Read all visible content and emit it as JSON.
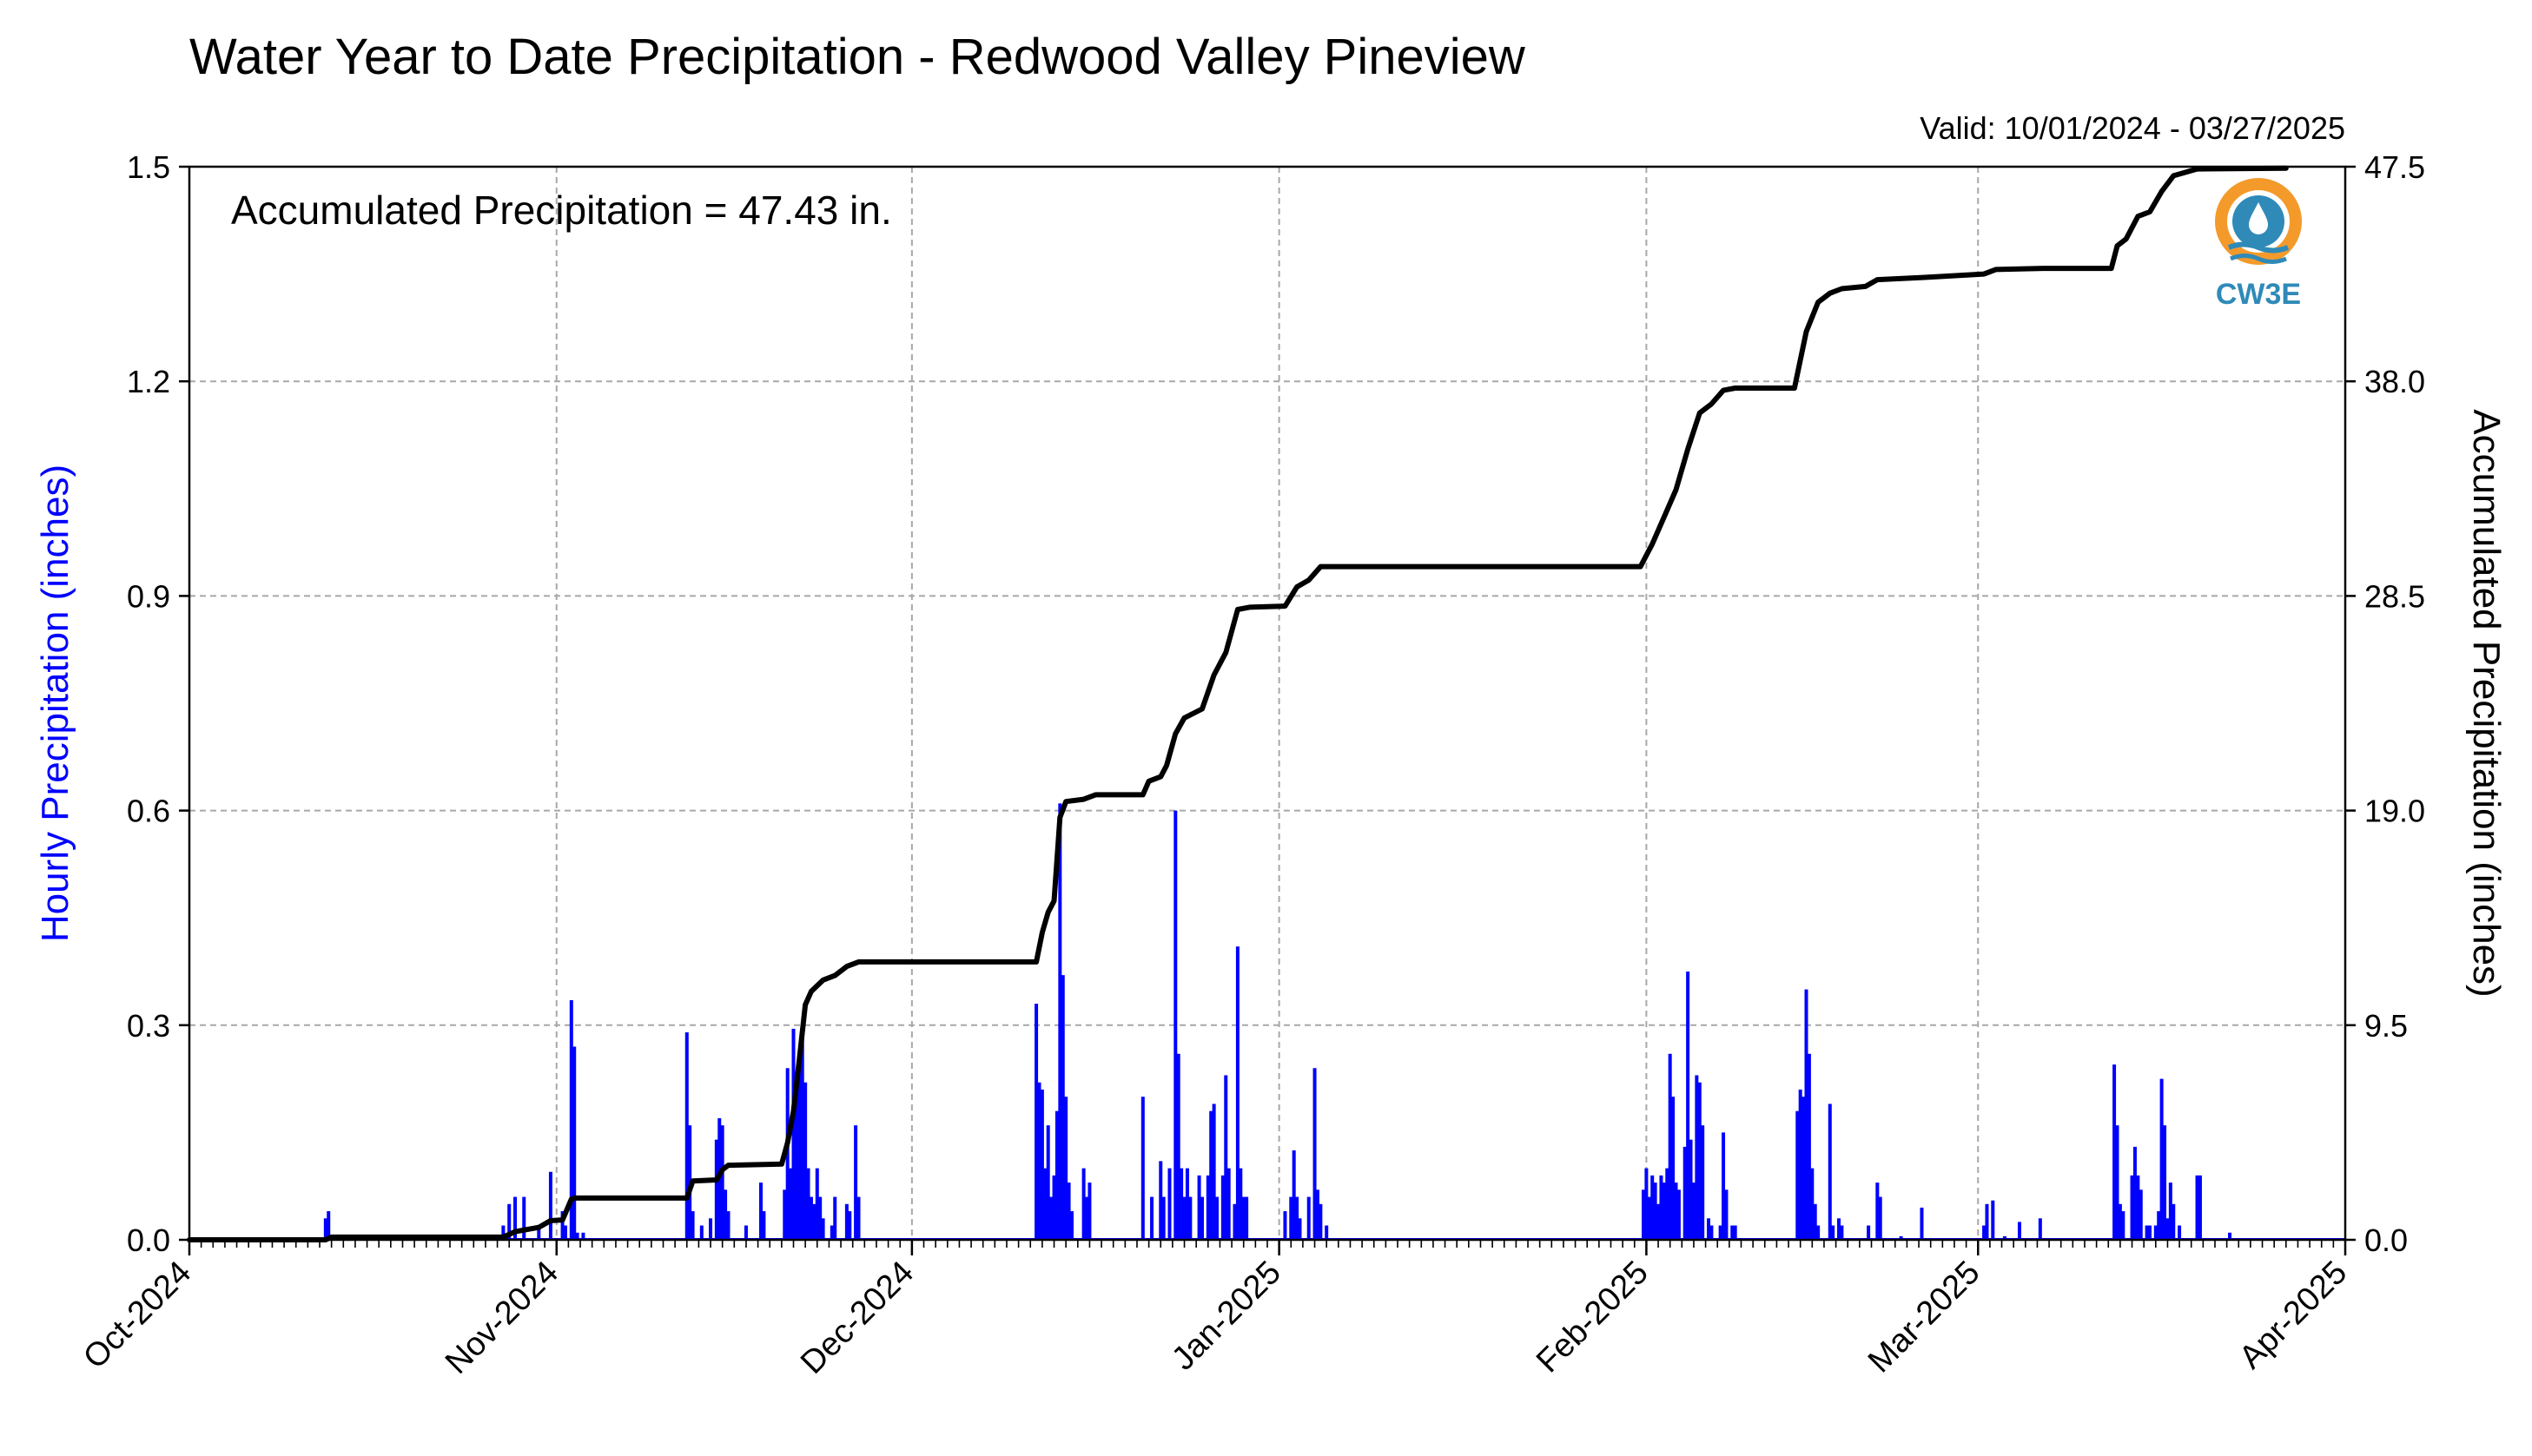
{
  "chart_data": {
    "type": "bar",
    "title": "Water Year to Date Precipitation - Redwood Valley Pineview",
    "subtitle": "Valid: 10/01/2024 - 03/27/2025",
    "annotation": "Accumulated Precipitation = 47.43 in.",
    "logo_text": "CW3E",
    "ylabel_left": "Hourly Precipitation (inches)",
    "ylabel_right": "Accumulated Precipitation (inches)",
    "x_range": [
      "2024-10-01",
      "2025-04-01"
    ],
    "ylim_left": [
      0,
      1.5
    ],
    "ylim_right": [
      0,
      47.5
    ],
    "grid": true,
    "colors": {
      "hourly": "#0000ff",
      "accumulated": "#000000",
      "grid": "#a8a8a8",
      "logo_orange": "#f39a2b",
      "logo_blue": "#2f8ab8"
    },
    "left_ticks": [
      "0.0",
      "0.3",
      "0.6",
      "0.9",
      "1.2",
      "1.5"
    ],
    "right_ticks": [
      "0.0",
      "9.5",
      "19.0",
      "28.5",
      "38.0",
      "47.5"
    ],
    "x_tick_labels": [
      {
        "date": "2024-10-01",
        "label": "Oct-2024"
      },
      {
        "date": "2024-11-01",
        "label": "Nov-2024"
      },
      {
        "date": "2024-12-01",
        "label": "Dec-2024"
      },
      {
        "date": "2025-01-01",
        "label": "Jan-2025"
      },
      {
        "date": "2025-02-01",
        "label": "Feb-2025"
      },
      {
        "date": "2025-03-01",
        "label": "Mar-2025"
      },
      {
        "date": "2025-04-01",
        "label": "Apr-2025"
      }
    ],
    "series": [
      {
        "name": "Hourly Precipitation",
        "kind": "bar",
        "points": [
          [
            "2024-10-12T12:00",
            0.03
          ],
          [
            "2024-10-12T18:00",
            0.04
          ],
          [
            "2024-10-27T12:00",
            0.02
          ],
          [
            "2024-10-28T00:00",
            0.05
          ],
          [
            "2024-10-28T12:00",
            0.06
          ],
          [
            "2024-10-29T06:00",
            0.06
          ],
          [
            "2024-10-30T12:00",
            0.02
          ],
          [
            "2024-10-31T12:00",
            0.095
          ],
          [
            "2024-11-01T12:00",
            0.04
          ],
          [
            "2024-11-01T18:00",
            0.02
          ],
          [
            "2024-11-02T06:00",
            0.335
          ],
          [
            "2024-11-02T12:00",
            0.27
          ],
          [
            "2024-11-02T18:00",
            0.01
          ],
          [
            "2024-11-03T06:00",
            0.01
          ],
          [
            "2024-11-12T00:00",
            0.29
          ],
          [
            "2024-11-12T06:00",
            0.16
          ],
          [
            "2024-11-12T12:00",
            0.04
          ],
          [
            "2024-11-13T06:00",
            0.02
          ],
          [
            "2024-11-14T00:00",
            0.03
          ],
          [
            "2024-11-14T12:00",
            0.14
          ],
          [
            "2024-11-14T18:00",
            0.17
          ],
          [
            "2024-11-15T00:00",
            0.16
          ],
          [
            "2024-11-15T06:00",
            0.07
          ],
          [
            "2024-11-15T12:00",
            0.04
          ],
          [
            "2024-11-17T00:00",
            0.02
          ],
          [
            "2024-11-18T06:00",
            0.08
          ],
          [
            "2024-11-18T12:00",
            0.04
          ],
          [
            "2024-11-20T06:00",
            0.07
          ],
          [
            "2024-11-20T12:00",
            0.24
          ],
          [
            "2024-11-20T18:00",
            0.1
          ],
          [
            "2024-11-21T00:00",
            0.295
          ],
          [
            "2024-11-21T06:00",
            0.2
          ],
          [
            "2024-11-21T12:00",
            0.26
          ],
          [
            "2024-11-21T18:00",
            0.3
          ],
          [
            "2024-11-22T00:00",
            0.22
          ],
          [
            "2024-11-22T06:00",
            0.1
          ],
          [
            "2024-11-22T12:00",
            0.06
          ],
          [
            "2024-11-22T18:00",
            0.05
          ],
          [
            "2024-11-23T00:00",
            0.1
          ],
          [
            "2024-11-23T06:00",
            0.06
          ],
          [
            "2024-11-23T12:00",
            0.03
          ],
          [
            "2024-11-24T06:00",
            0.02
          ],
          [
            "2024-11-24T12:00",
            0.06
          ],
          [
            "2024-11-25T12:00",
            0.05
          ],
          [
            "2024-11-25T18:00",
            0.04
          ],
          [
            "2024-11-26T06:00",
            0.16
          ],
          [
            "2024-11-26T12:00",
            0.06
          ],
          [
            "2024-12-11T12:00",
            0.33
          ],
          [
            "2024-12-11T18:00",
            0.22
          ],
          [
            "2024-12-12T00:00",
            0.21
          ],
          [
            "2024-12-12T06:00",
            0.1
          ],
          [
            "2024-12-12T12:00",
            0.16
          ],
          [
            "2024-12-12T18:00",
            0.06
          ],
          [
            "2024-12-13T00:00",
            0.09
          ],
          [
            "2024-12-13T06:00",
            0.18
          ],
          [
            "2024-12-13T12:00",
            0.61
          ],
          [
            "2024-12-13T18:00",
            0.37
          ],
          [
            "2024-12-14T00:00",
            0.2
          ],
          [
            "2024-12-14T06:00",
            0.08
          ],
          [
            "2024-12-14T12:00",
            0.04
          ],
          [
            "2024-12-15T12:00",
            0.1
          ],
          [
            "2024-12-15T18:00",
            0.06
          ],
          [
            "2024-12-16T00:00",
            0.08
          ],
          [
            "2024-12-20T12:00",
            0.2
          ],
          [
            "2024-12-21T06:00",
            0.06
          ],
          [
            "2024-12-22T00:00",
            0.11
          ],
          [
            "2024-12-22T06:00",
            0.06
          ],
          [
            "2024-12-22T18:00",
            0.1
          ],
          [
            "2024-12-23T06:00",
            0.6
          ],
          [
            "2024-12-23T12:00",
            0.26
          ],
          [
            "2024-12-23T18:00",
            0.1
          ],
          [
            "2024-12-24T00:00",
            0.06
          ],
          [
            "2024-12-24T06:00",
            0.1
          ],
          [
            "2024-12-24T12:00",
            0.06
          ],
          [
            "2024-12-25T06:00",
            0.09
          ],
          [
            "2024-12-25T12:00",
            0.06
          ],
          [
            "2024-12-26T00:00",
            0.09
          ],
          [
            "2024-12-26T06:00",
            0.18
          ],
          [
            "2024-12-26T12:00",
            0.19
          ],
          [
            "2024-12-26T18:00",
            0.06
          ],
          [
            "2024-12-27T06:00",
            0.09
          ],
          [
            "2024-12-27T12:00",
            0.23
          ],
          [
            "2024-12-27T18:00",
            0.1
          ],
          [
            "2024-12-28T06:00",
            0.05
          ],
          [
            "2024-12-28T12:00",
            0.41
          ],
          [
            "2024-12-28T18:00",
            0.1
          ],
          [
            "2024-12-29T00:00",
            0.06
          ],
          [
            "2024-12-29T06:00",
            0.06
          ],
          [
            "2025-01-01T12:00",
            0.04
          ],
          [
            "2025-01-02T00:00",
            0.06
          ],
          [
            "2025-01-02T06:00",
            0.125
          ],
          [
            "2025-01-02T12:00",
            0.06
          ],
          [
            "2025-01-02T18:00",
            0.03
          ],
          [
            "2025-01-03T12:00",
            0.06
          ],
          [
            "2025-01-04T00:00",
            0.24
          ],
          [
            "2025-01-04T06:00",
            0.07
          ],
          [
            "2025-01-04T12:00",
            0.05
          ],
          [
            "2025-01-05T00:00",
            0.02
          ],
          [
            "2025-01-31T18:00",
            0.07
          ],
          [
            "2025-02-01T00:00",
            0.1
          ],
          [
            "2025-02-01T06:00",
            0.06
          ],
          [
            "2025-02-01T12:00",
            0.09
          ],
          [
            "2025-02-01T18:00",
            0.08
          ],
          [
            "2025-02-02T00:00",
            0.05
          ],
          [
            "2025-02-02T06:00",
            0.09
          ],
          [
            "2025-02-02T12:00",
            0.08
          ],
          [
            "2025-02-02T18:00",
            0.1
          ],
          [
            "2025-02-03T00:00",
            0.26
          ],
          [
            "2025-02-03T06:00",
            0.2
          ],
          [
            "2025-02-03T12:00",
            0.08
          ],
          [
            "2025-02-03T18:00",
            0.07
          ],
          [
            "2025-02-04T06:00",
            0.13
          ],
          [
            "2025-02-04T12:00",
            0.375
          ],
          [
            "2025-02-04T18:00",
            0.14
          ],
          [
            "2025-02-05T00:00",
            0.08
          ],
          [
            "2025-02-05T06:00",
            0.23
          ],
          [
            "2025-02-05T12:00",
            0.22
          ],
          [
            "2025-02-05T18:00",
            0.16
          ],
          [
            "2025-02-06T06:00",
            0.03
          ],
          [
            "2025-02-06T12:00",
            0.02
          ],
          [
            "2025-02-07T06:00",
            0.02
          ],
          [
            "2025-02-07T12:00",
            0.15
          ],
          [
            "2025-02-07T18:00",
            0.07
          ],
          [
            "2025-02-08T06:00",
            0.02
          ],
          [
            "2025-02-08T12:00",
            0.02
          ],
          [
            "2025-02-13T18:00",
            0.18
          ],
          [
            "2025-02-14T00:00",
            0.21
          ],
          [
            "2025-02-14T06:00",
            0.2
          ],
          [
            "2025-02-14T12:00",
            0.35
          ],
          [
            "2025-02-14T18:00",
            0.26
          ],
          [
            "2025-02-15T00:00",
            0.1
          ],
          [
            "2025-02-15T06:00",
            0.05
          ],
          [
            "2025-02-15T12:00",
            0.02
          ],
          [
            "2025-02-16T12:00",
            0.19
          ],
          [
            "2025-02-16T18:00",
            0.02
          ],
          [
            "2025-02-17T06:00",
            0.03
          ],
          [
            "2025-02-17T12:00",
            0.02
          ],
          [
            "2025-02-19T18:00",
            0.02
          ],
          [
            "2025-02-20T12:00",
            0.08
          ],
          [
            "2025-02-20T18:00",
            0.06
          ],
          [
            "2025-02-22T12:00",
            0.005
          ],
          [
            "2025-02-24T06:00",
            0.045
          ],
          [
            "2025-03-01T12:00",
            0.02
          ],
          [
            "2025-03-01T18:00",
            0.05
          ],
          [
            "2025-03-02T06:00",
            0.055
          ],
          [
            "2025-03-03T06:00",
            0.005
          ],
          [
            "2025-03-04T12:00",
            0.025
          ],
          [
            "2025-03-06T06:00",
            0.03
          ],
          [
            "2025-03-12T12:00",
            0.245
          ],
          [
            "2025-03-12T18:00",
            0.16
          ],
          [
            "2025-03-13T00:00",
            0.05
          ],
          [
            "2025-03-13T06:00",
            0.04
          ],
          [
            "2025-03-14T00:00",
            0.09
          ],
          [
            "2025-03-14T06:00",
            0.13
          ],
          [
            "2025-03-14T12:00",
            0.09
          ],
          [
            "2025-03-14T18:00",
            0.07
          ],
          [
            "2025-03-15T06:00",
            0.02
          ],
          [
            "2025-03-15T12:00",
            0.02
          ],
          [
            "2025-03-16T00:00",
            0.02
          ],
          [
            "2025-03-16T06:00",
            0.04
          ],
          [
            "2025-03-16T12:00",
            0.225
          ],
          [
            "2025-03-16T18:00",
            0.16
          ],
          [
            "2025-03-17T00:00",
            0.03
          ],
          [
            "2025-03-17T06:00",
            0.08
          ],
          [
            "2025-03-17T12:00",
            0.05
          ],
          [
            "2025-03-18T00:00",
            0.02
          ],
          [
            "2025-03-19T12:00",
            0.09
          ],
          [
            "2025-03-19T18:00",
            0.09
          ],
          [
            "2025-03-22T06:00",
            0.01
          ]
        ]
      },
      {
        "name": "Accumulated Precipitation",
        "kind": "step-line",
        "points": [
          [
            "2024-10-01",
            0.0
          ],
          [
            "2024-10-12T12:00",
            0.0
          ],
          [
            "2024-10-13T00:00",
            0.12
          ],
          [
            "2024-10-27T12:00",
            0.12
          ],
          [
            "2024-10-28T12:00",
            0.36
          ],
          [
            "2024-10-30T12:00",
            0.55
          ],
          [
            "2024-10-31T12:00",
            0.85
          ],
          [
            "2024-11-01T12:00",
            0.88
          ],
          [
            "2024-11-02T06:00",
            1.8
          ],
          [
            "2024-11-02T12:00",
            1.85
          ],
          [
            "2024-11-12T00:00",
            1.85
          ],
          [
            "2024-11-12T12:00",
            2.6
          ],
          [
            "2024-11-14T12:00",
            2.65
          ],
          [
            "2024-11-15T00:00",
            3.1
          ],
          [
            "2024-11-15T12:00",
            3.3
          ],
          [
            "2024-11-20T00:00",
            3.35
          ],
          [
            "2024-11-20T12:00",
            4.3
          ],
          [
            "2024-11-21T00:00",
            5.7
          ],
          [
            "2024-11-21T12:00",
            8.0
          ],
          [
            "2024-11-22T00:00",
            10.4
          ],
          [
            "2024-11-22T12:00",
            11.0
          ],
          [
            "2024-11-23T12:00",
            11.5
          ],
          [
            "2024-11-24T12:00",
            11.7
          ],
          [
            "2024-11-25T12:00",
            12.1
          ],
          [
            "2024-11-26T12:00",
            12.3
          ],
          [
            "2024-12-11T12:00",
            12.3
          ],
          [
            "2024-12-12T00:00",
            13.6
          ],
          [
            "2024-12-12T12:00",
            14.5
          ],
          [
            "2024-12-13T00:00",
            15.0
          ],
          [
            "2024-12-13T12:00",
            18.7
          ],
          [
            "2024-12-14T00:00",
            19.4
          ],
          [
            "2024-12-15T12:00",
            19.5
          ],
          [
            "2024-12-16T12:00",
            19.7
          ],
          [
            "2024-12-20T12:00",
            19.7
          ],
          [
            "2024-12-21T00:00",
            20.3
          ],
          [
            "2024-12-22T00:00",
            20.5
          ],
          [
            "2024-12-22T12:00",
            21.0
          ],
          [
            "2024-12-23T06:00",
            22.4
          ],
          [
            "2024-12-24T00:00",
            23.1
          ],
          [
            "2024-12-25T12:00",
            23.5
          ],
          [
            "2024-12-26T12:00",
            25.0
          ],
          [
            "2024-12-27T12:00",
            26.0
          ],
          [
            "2024-12-28T12:00",
            27.9
          ],
          [
            "2024-12-29T12:00",
            28.0
          ],
          [
            "2025-01-01T12:00",
            28.05
          ],
          [
            "2025-01-02T12:00",
            28.9
          ],
          [
            "2025-01-03T12:00",
            29.2
          ],
          [
            "2025-01-04T12:00",
            29.8
          ],
          [
            "2025-01-31T12:00",
            29.8
          ],
          [
            "2025-02-01T12:00",
            30.8
          ],
          [
            "2025-02-02T12:00",
            32.0
          ],
          [
            "2025-02-03T12:00",
            33.2
          ],
          [
            "2025-02-04T12:00",
            35.0
          ],
          [
            "2025-02-05T12:00",
            36.6
          ],
          [
            "2025-02-06T12:00",
            37.0
          ],
          [
            "2025-02-07T12:00",
            37.6
          ],
          [
            "2025-02-08T12:00",
            37.7
          ],
          [
            "2025-02-13T12:00",
            37.7
          ],
          [
            "2025-02-14T12:00",
            40.2
          ],
          [
            "2025-02-15T12:00",
            41.5
          ],
          [
            "2025-02-16T12:00",
            41.9
          ],
          [
            "2025-02-17T12:00",
            42.1
          ],
          [
            "2025-02-19T12:00",
            42.2
          ],
          [
            "2025-02-20T12:00",
            42.5
          ],
          [
            "2025-02-24T12:00",
            42.6
          ],
          [
            "2025-03-01T12:00",
            42.75
          ],
          [
            "2025-03-02T12:00",
            42.95
          ],
          [
            "2025-03-06T12:00",
            43.0
          ],
          [
            "2025-03-12T06:00",
            43.0
          ],
          [
            "2025-03-12T18:00",
            44.0
          ],
          [
            "2025-03-13T12:00",
            44.3
          ],
          [
            "2025-03-14T12:00",
            45.3
          ],
          [
            "2025-03-15T12:00",
            45.5
          ],
          [
            "2025-03-16T12:00",
            46.4
          ],
          [
            "2025-03-17T12:00",
            47.1
          ],
          [
            "2025-03-19T12:00",
            47.4
          ],
          [
            "2025-03-27T00:00",
            47.43
          ]
        ]
      }
    ]
  }
}
